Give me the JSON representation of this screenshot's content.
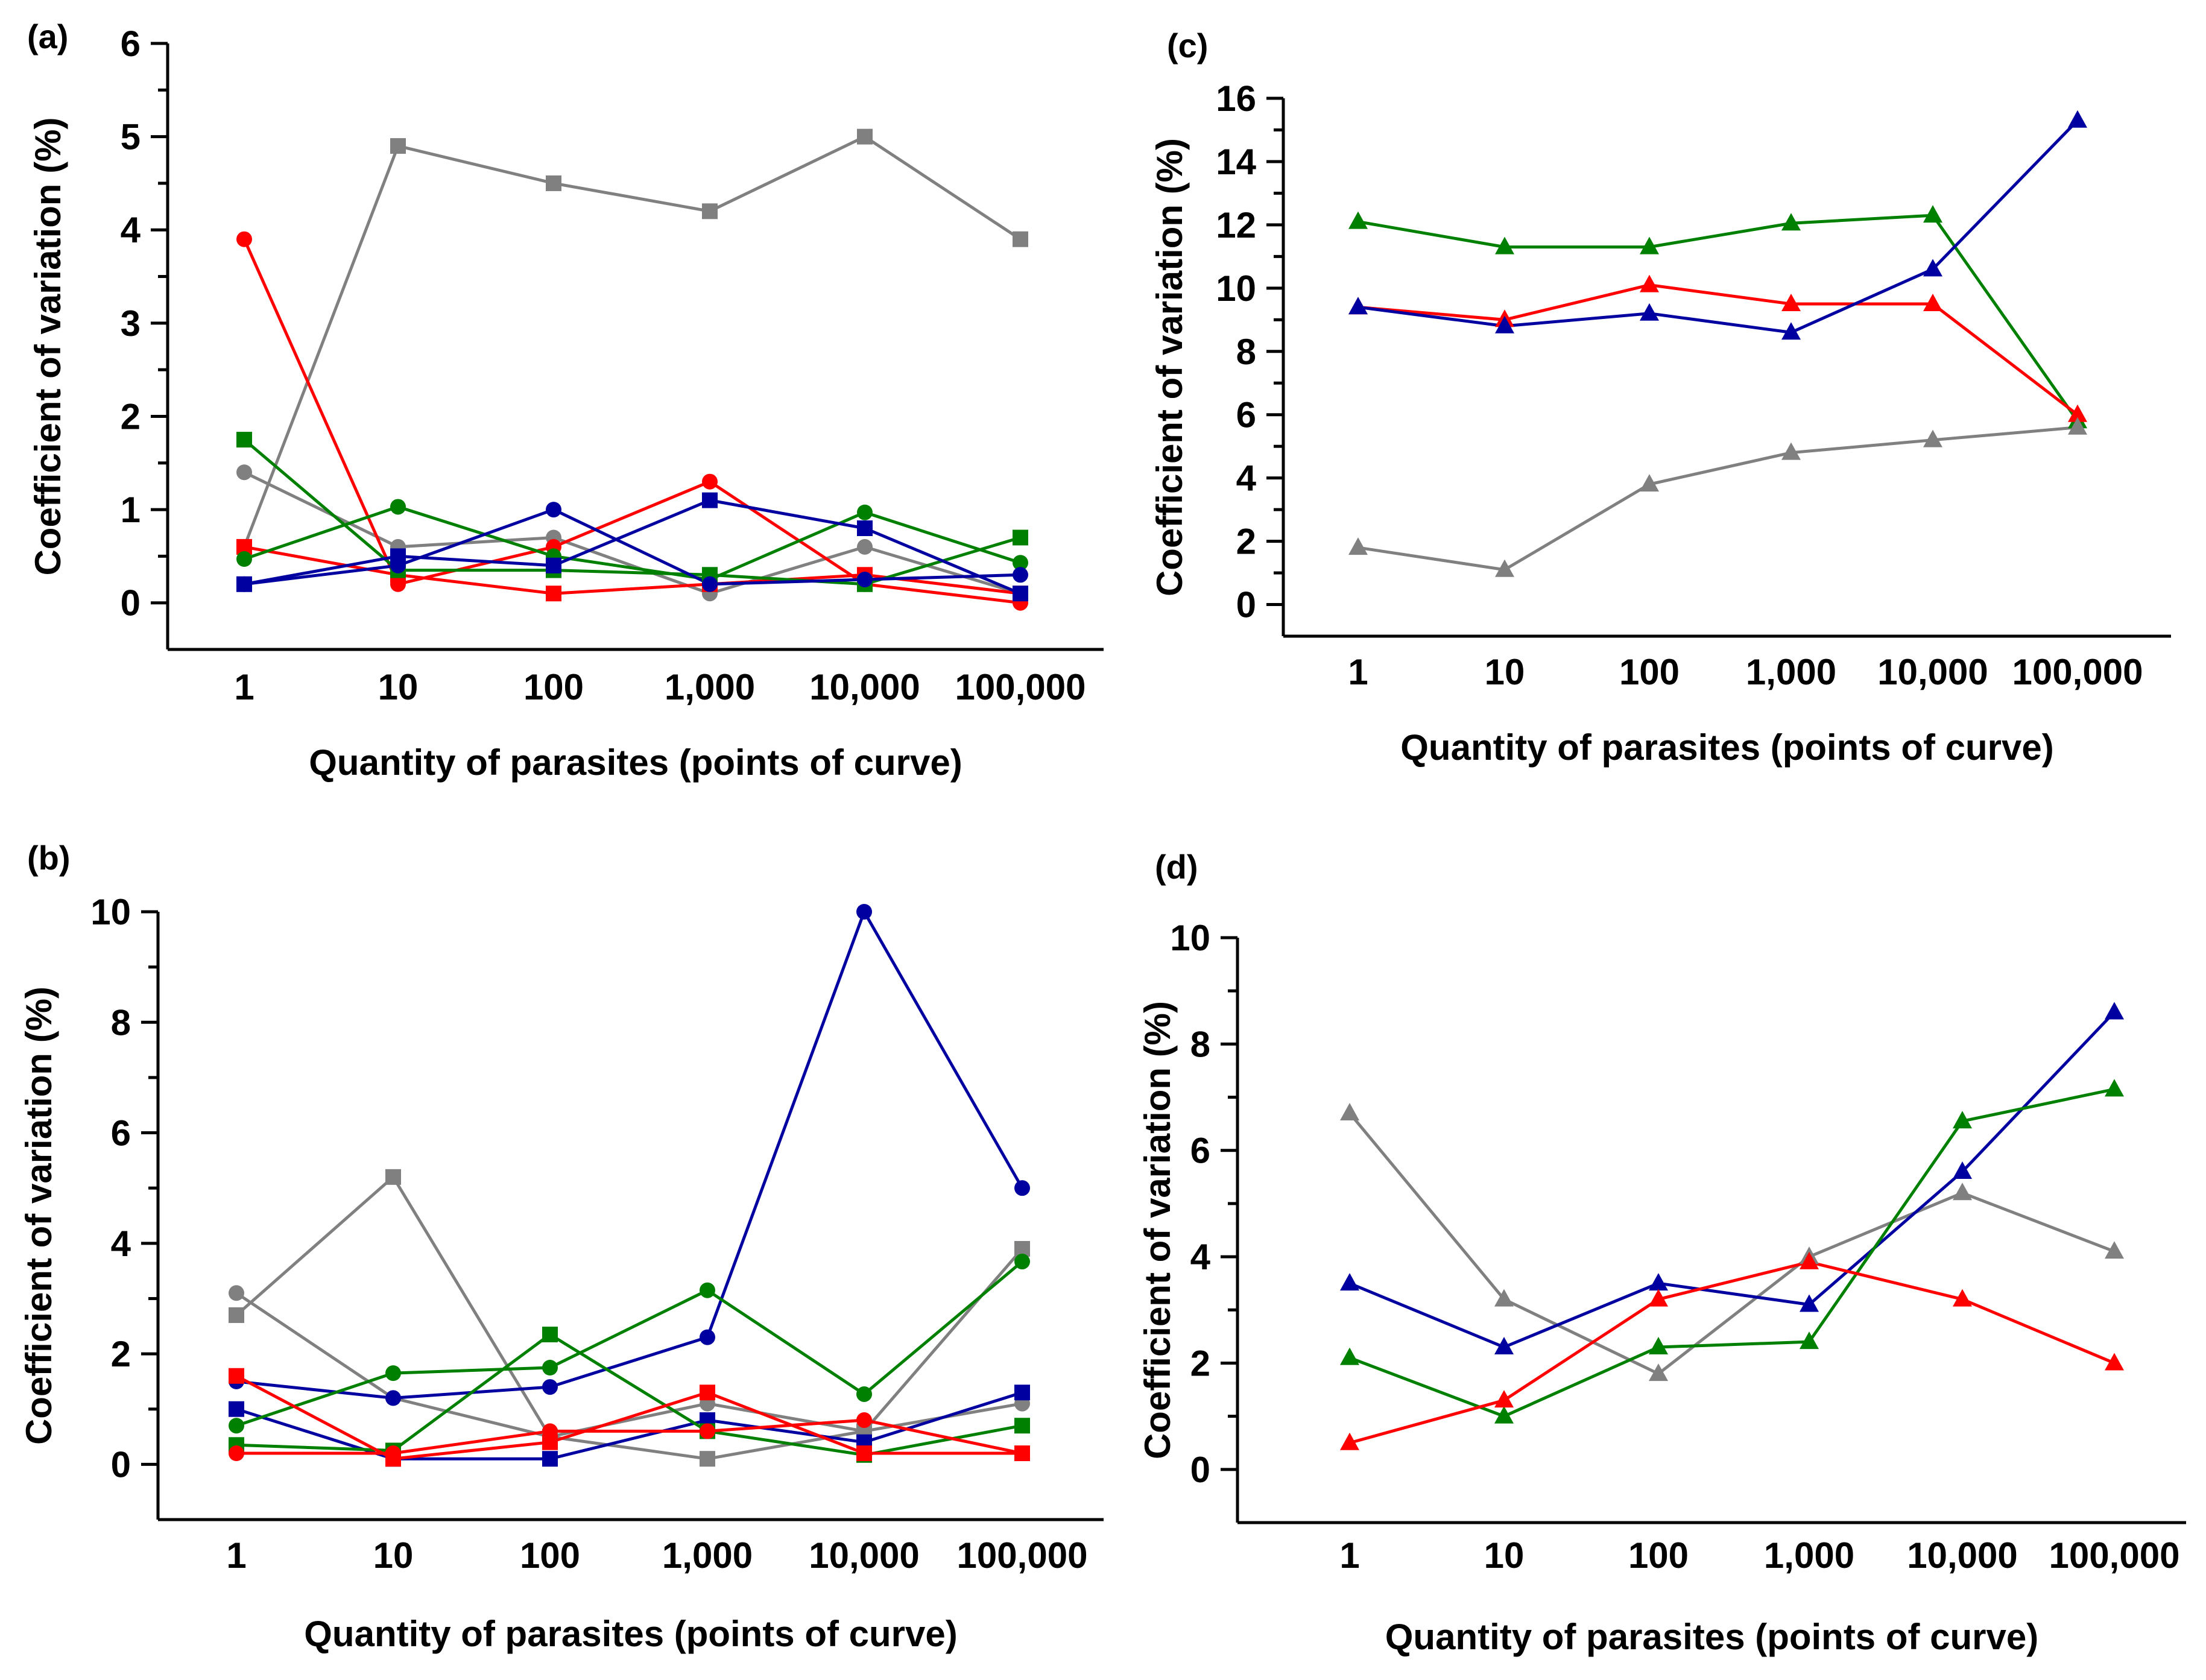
{
  "chart_data": [
    {
      "panel": "(a)",
      "type": "line",
      "xlabel": "Quantity of parasites (points of curve)",
      "ylabel": "Coefficient of variation (%)",
      "categories": [
        "1",
        "10",
        "100",
        "1,000",
        "10,000",
        "100,000"
      ],
      "yticks": [
        "0",
        "1",
        "2",
        "3",
        "4",
        "5",
        "6"
      ],
      "ylim": [
        -0.5,
        6
      ],
      "series": [
        {
          "name": "gray-square",
          "color": "#808080",
          "marker": "square",
          "values": [
            0.6,
            4.9,
            4.5,
            4.2,
            5.0,
            3.9
          ]
        },
        {
          "name": "gray-circle",
          "color": "#808080",
          "marker": "circle",
          "values": [
            1.4,
            0.6,
            0.7,
            0.1,
            0.6,
            0.1
          ]
        },
        {
          "name": "red-circle",
          "color": "#ff0000",
          "marker": "circle",
          "values": [
            3.9,
            0.2,
            0.6,
            1.3,
            0.2,
            0.0
          ]
        },
        {
          "name": "red-square",
          "color": "#ff0000",
          "marker": "square",
          "values": [
            0.6,
            0.3,
            0.1,
            0.2,
            0.3,
            0.1
          ]
        },
        {
          "name": "green-square",
          "color": "#008000",
          "marker": "square",
          "values": [
            1.75,
            0.35,
            0.35,
            0.3,
            0.2,
            0.7
          ]
        },
        {
          "name": "green-circle",
          "color": "#008000",
          "marker": "circle",
          "values": [
            0.47,
            1.03,
            0.5,
            0.25,
            0.97,
            0.43
          ]
        },
        {
          "name": "blue-square",
          "color": "#0000a0",
          "marker": "square",
          "values": [
            0.2,
            0.5,
            0.4,
            1.1,
            0.8,
            0.1
          ]
        },
        {
          "name": "blue-circle",
          "color": "#0000a0",
          "marker": "circle",
          "values": [
            0.2,
            0.4,
            1.0,
            0.2,
            0.25,
            0.3
          ]
        }
      ]
    },
    {
      "panel": "(b)",
      "type": "line",
      "xlabel": "Quantity of parasites (points of curve)",
      "ylabel": "Coefficient of variation (%)",
      "categories": [
        "1",
        "10",
        "100",
        "1,000",
        "10,000",
        "100,000"
      ],
      "yticks": [
        "0",
        "2",
        "4",
        "6",
        "8",
        "10"
      ],
      "ylim": [
        -1,
        10
      ],
      "series": [
        {
          "name": "gray-square",
          "color": "#808080",
          "marker": "square",
          "values": [
            2.7,
            5.2,
            0.5,
            0.1,
            0.6,
            3.9
          ]
        },
        {
          "name": "gray-circle",
          "color": "#808080",
          "marker": "circle",
          "values": [
            3.1,
            1.2,
            0.5,
            1.1,
            0.6,
            1.1
          ]
        },
        {
          "name": "blue-circle",
          "color": "#0000a0",
          "marker": "circle",
          "values": [
            1.5,
            1.2,
            1.4,
            2.3,
            10.0,
            5.0
          ]
        },
        {
          "name": "blue-square",
          "color": "#0000a0",
          "marker": "square",
          "values": [
            1.0,
            0.1,
            0.1,
            0.8,
            0.4,
            1.3
          ]
        },
        {
          "name": "green-circle",
          "color": "#008000",
          "marker": "circle",
          "values": [
            0.7,
            1.65,
            1.75,
            3.15,
            1.27,
            3.67
          ]
        },
        {
          "name": "green-square",
          "color": "#008000",
          "marker": "square",
          "values": [
            0.35,
            0.25,
            2.35,
            0.6,
            0.17,
            0.7
          ]
        },
        {
          "name": "red-square",
          "color": "#ff0000",
          "marker": "square",
          "values": [
            1.6,
            0.1,
            0.4,
            1.3,
            0.2,
            0.2
          ]
        },
        {
          "name": "red-circle",
          "color": "#ff0000",
          "marker": "circle",
          "values": [
            0.2,
            0.2,
            0.6,
            0.6,
            0.8,
            0.2
          ]
        }
      ]
    },
    {
      "panel": "(c)",
      "type": "line",
      "xlabel": "Quantity of parasites (points of curve)",
      "ylabel": "Coefficient of variation (%)",
      "categories": [
        "1",
        "10",
        "100",
        "1,000",
        "10,000",
        "100,000"
      ],
      "yticks": [
        "0",
        "2",
        "4",
        "6",
        "8",
        "10",
        "12",
        "14",
        "16"
      ],
      "ylim": [
        -1,
        16
      ],
      "series": [
        {
          "name": "green-triangle",
          "color": "#008000",
          "marker": "triangle",
          "values": [
            12.1,
            11.3,
            11.3,
            12.05,
            12.3,
            5.8
          ]
        },
        {
          "name": "red-triangle",
          "color": "#ff0000",
          "marker": "triangle",
          "values": [
            9.4,
            9.0,
            10.1,
            9.5,
            9.5,
            6.0
          ]
        },
        {
          "name": "blue-triangle",
          "color": "#0000a0",
          "marker": "triangle",
          "values": [
            9.4,
            8.8,
            9.2,
            8.6,
            10.6,
            15.3
          ]
        },
        {
          "name": "gray-triangle",
          "color": "#808080",
          "marker": "triangle",
          "values": [
            1.8,
            1.1,
            3.8,
            4.8,
            5.2,
            5.6
          ]
        }
      ]
    },
    {
      "panel": "(d)",
      "type": "line",
      "xlabel": "Quantity of parasites (points of curve)",
      "ylabel": "Coefficient of variation (%)",
      "categories": [
        "1",
        "10",
        "100",
        "1,000",
        "10,000",
        "100,000"
      ],
      "yticks": [
        "0",
        "2",
        "4",
        "6",
        "8",
        "10"
      ],
      "ylim": [
        -1,
        10
      ],
      "series": [
        {
          "name": "gray-triangle",
          "color": "#808080",
          "marker": "triangle",
          "values": [
            6.7,
            3.2,
            1.8,
            4.0,
            5.2,
            4.1
          ]
        },
        {
          "name": "blue-triangle",
          "color": "#0000a0",
          "marker": "triangle",
          "values": [
            3.5,
            2.3,
            3.5,
            3.1,
            5.6,
            8.6
          ]
        },
        {
          "name": "green-triangle",
          "color": "#008000",
          "marker": "triangle",
          "values": [
            2.1,
            1.0,
            2.3,
            2.4,
            6.55,
            7.15
          ]
        },
        {
          "name": "red-triangle",
          "color": "#ff0000",
          "marker": "triangle",
          "values": [
            0.5,
            1.3,
            3.2,
            3.9,
            3.2,
            2.0
          ]
        }
      ]
    }
  ]
}
